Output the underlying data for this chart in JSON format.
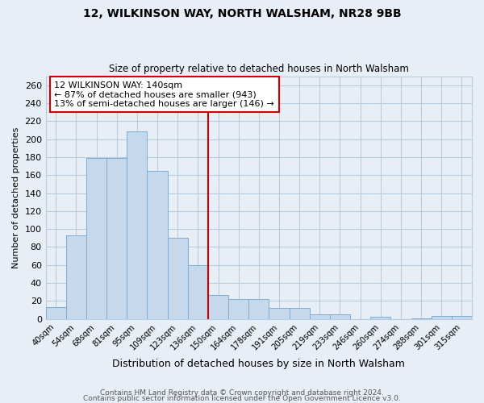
{
  "title": "12, WILKINSON WAY, NORTH WALSHAM, NR28 9BB",
  "subtitle": "Size of property relative to detached houses in North Walsham",
  "xlabel": "Distribution of detached houses by size in North Walsham",
  "ylabel": "Number of detached properties",
  "bar_color": "#c5d8ec",
  "bar_edge_color": "#7aaed6",
  "background_color": "#e8eef5",
  "grid_color": "#b8cce0",
  "categories": [
    "40sqm",
    "54sqm",
    "68sqm",
    "81sqm",
    "95sqm",
    "109sqm",
    "123sqm",
    "136sqm",
    "150sqm",
    "164sqm",
    "178sqm",
    "191sqm",
    "205sqm",
    "219sqm",
    "233sqm",
    "246sqm",
    "260sqm",
    "274sqm",
    "288sqm",
    "301sqm",
    "315sqm"
  ],
  "values": [
    13,
    93,
    179,
    179,
    209,
    165,
    90,
    60,
    27,
    22,
    22,
    12,
    12,
    5,
    5,
    0,
    2,
    0,
    1,
    3,
    3
  ],
  "ylim": [
    0,
    270
  ],
  "yticks": [
    0,
    20,
    40,
    60,
    80,
    100,
    120,
    140,
    160,
    180,
    200,
    220,
    240,
    260
  ],
  "vline_index": 7.5,
  "vline_color": "#cc0000",
  "annotation_title": "12 WILKINSON WAY: 140sqm",
  "annotation_line1": "← 87% of detached houses are smaller (943)",
  "annotation_line2": "13% of semi-detached houses are larger (146) →",
  "annotation_box_edge": "#cc0000",
  "footer1": "Contains HM Land Registry data © Crown copyright and database right 2024.",
  "footer2": "Contains public sector information licensed under the Open Government Licence v3.0."
}
